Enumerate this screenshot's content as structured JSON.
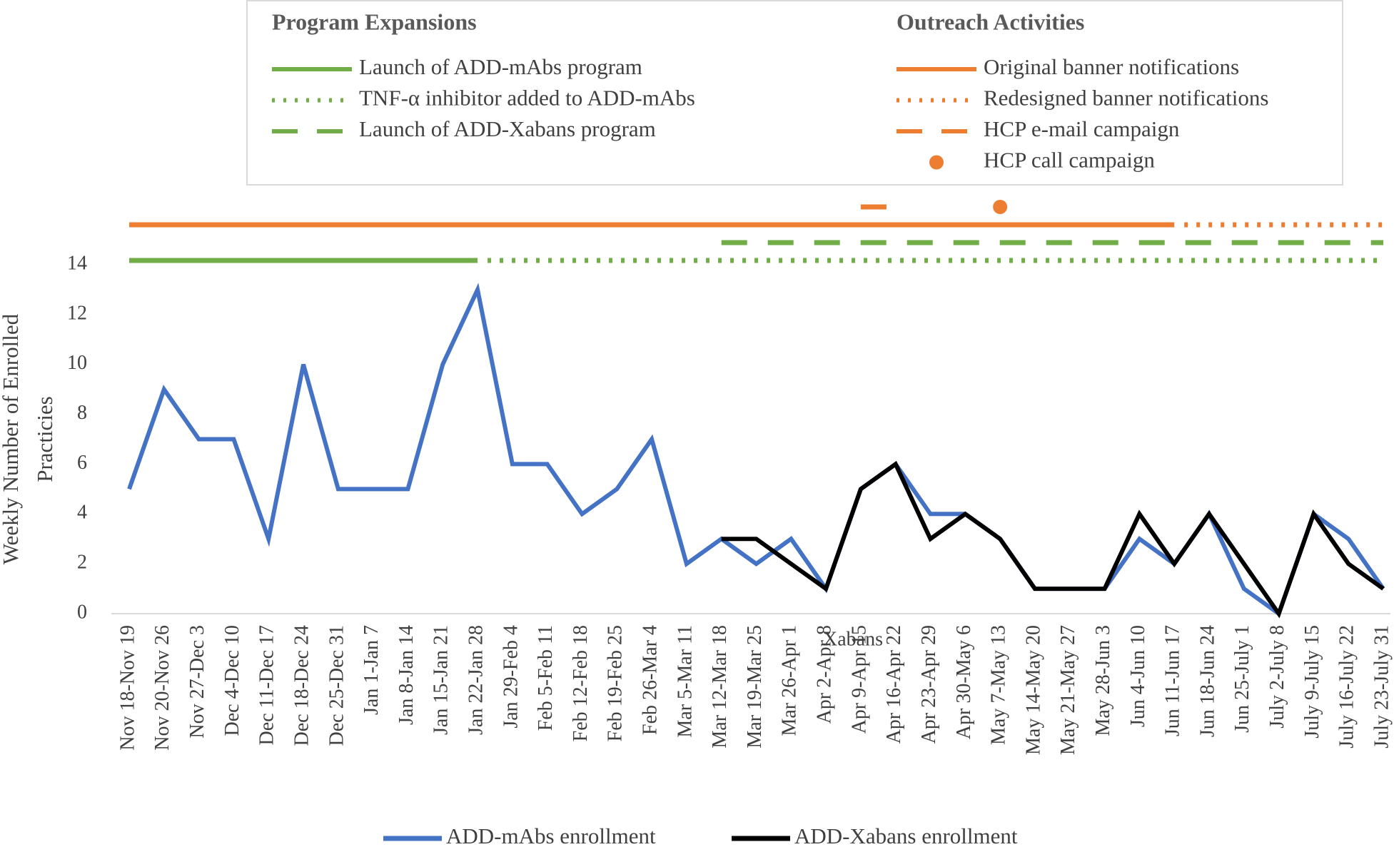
{
  "chart_data": {
    "type": "line",
    "ylabel": [
      "Weekly Number of Enrolled",
      "Practicies"
    ],
    "categories": [
      "Nov 18-Nov 19",
      "Nov 20-Nov 26",
      "Nov 27-Dec 3",
      "Dec 4-Dec 10",
      "Dec 11-Dec 17",
      "Dec 18-Dec 24",
      "Dec 25-Dec 31",
      "Jan 1-Jan 7",
      "Jan 8-Jan 14",
      "Jan 15-Jan 21",
      "Jan 22-Jan 28",
      "Jan 29-Feb 4",
      "Feb 5-Feb 11",
      "Feb 12-Feb 18",
      "Feb 19-Feb 25",
      "Feb 26-Mar 4",
      "Mar 5-Mar 11",
      "Mar 12-Mar 18",
      "Mar 19-Mar 25",
      "Mar 26-Apr 1",
      "Apr 2-Apr 8",
      "Apr 9-Apr 15",
      "Apr 16-Apr 22",
      "Apr 23-Apr 29",
      "Apr 30-May 6",
      "May 7-May 13",
      "May 14-May 20",
      "May 21-May 27",
      "May 28-Jun 3",
      "Jun 4-Jun 10",
      "Jun 11-Jun 17",
      "Jun 18-Jun 24",
      "Jun 25-July 1",
      "July 2-July 8",
      "July 9-July 15",
      "July 16-July 22",
      "July 23-July 31"
    ],
    "series": [
      {
        "name": "ADD-mAbs enrollment",
        "color": "#4472c4",
        "values": [
          5,
          9,
          7,
          7,
          3,
          10,
          5,
          5,
          5,
          10,
          13,
          6,
          6,
          4,
          5,
          7,
          2,
          3,
          2,
          3,
          1,
          5,
          6,
          4,
          4,
          3,
          1,
          1,
          1,
          3,
          2,
          4,
          1,
          0,
          4,
          3,
          1
        ]
      },
      {
        "name": "ADD-Xabans enrollment",
        "color": "#000000",
        "values": [
          null,
          null,
          null,
          null,
          null,
          null,
          null,
          null,
          null,
          null,
          null,
          null,
          null,
          null,
          null,
          null,
          null,
          3,
          3,
          2,
          1,
          5,
          6,
          3,
          4,
          3,
          1,
          1,
          1,
          4,
          2,
          4,
          2,
          0,
          4,
          2,
          1
        ]
      }
    ],
    "ylim": [
      0,
      14
    ],
    "yticks": [
      0,
      2,
      4,
      6,
      8,
      10,
      12,
      14
    ],
    "annotation": "Xabans",
    "legend_groups": [
      {
        "title": "Program Expansions",
        "items": [
          {
            "name": "Launch of ADD-mAbs program",
            "color": "#70ad47",
            "style": "solid",
            "start": "Nov 18-Nov 19",
            "end": "Jan 22-Jan 28"
          },
          {
            "name": "TNF-α inhibitor added to ADD-mAbs",
            "color": "#70ad47",
            "style": "dotted",
            "start": "Jan 22-Jan 28",
            "end": "July 23-July 31"
          },
          {
            "name": "Launch of ADD-Xabans program",
            "color": "#70ad47",
            "style": "dashed",
            "start": "Mar 12-Mar 18",
            "end": "July 23-July 31"
          }
        ]
      },
      {
        "title": "Outreach Activities",
        "items": [
          {
            "name": "Original banner notifications",
            "color": "#ed7d31",
            "style": "solid",
            "start": "Nov 18-Nov 19",
            "end": "Jun 11-Jun 17"
          },
          {
            "name": "Redesigned banner notifications",
            "color": "#ed7d31",
            "style": "dotted",
            "start": "Jun 11-Jun 17",
            "end": "July 23-July 31"
          },
          {
            "name": "HCP e-mail campaign",
            "color": "#ed7d31",
            "style": "dashed",
            "start": "Apr 9-Apr 15",
            "end": "Apr 16-Apr 22"
          },
          {
            "name": "HCP call campaign",
            "color": "#ed7d31",
            "style": "marker",
            "start": "May 7-May 13",
            "end": "May 7-May 13"
          }
        ]
      }
    ]
  }
}
